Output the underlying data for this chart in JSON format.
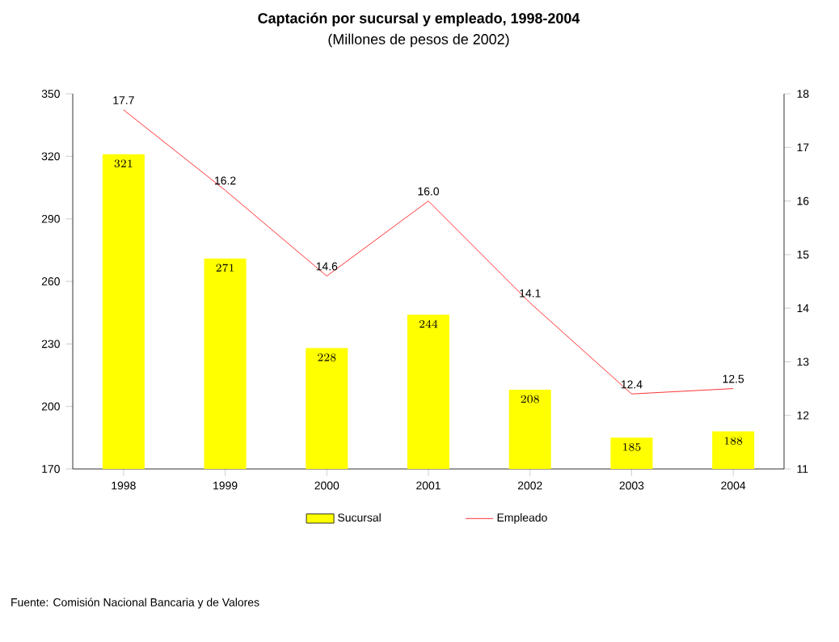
{
  "chart_data": {
    "type": "bar",
    "title": "Captación por sucursal y empleado, 1998-2004",
    "subtitle": "(Millones de pesos de 2002)",
    "categories": [
      "1998",
      "1999",
      "2000",
      "2001",
      "2002",
      "2003",
      "2004"
    ],
    "series": [
      {
        "name": "Sucursal",
        "color": "#ffff00",
        "values": [
          321,
          271,
          228,
          244,
          208,
          185,
          188
        ]
      },
      {
        "name": "Empleado",
        "type": "line",
        "axis": "y2",
        "color": "#ff0000",
        "values": [
          17.7,
          16.2,
          14.6,
          16.0,
          14.1,
          12.4,
          12.5
        ],
        "value_labels": [
          "17.7",
          "16.2",
          "14.6",
          "16.0",
          "14.1",
          "12.4",
          "12.5"
        ]
      }
    ],
    "ylim": [
      170,
      350
    ],
    "yticks": [
      170,
      200,
      230,
      260,
      290,
      320,
      350
    ],
    "y2lim": [
      11,
      18
    ],
    "y2ticks": [
      11,
      12,
      13,
      14,
      15,
      16,
      17,
      18
    ],
    "data_labels": true,
    "legend": "bottom",
    "grid": false,
    "marker": "none",
    "annotations": [
      "Fuente: Comisión Nacional Bancaria y de Valores"
    ]
  }
}
